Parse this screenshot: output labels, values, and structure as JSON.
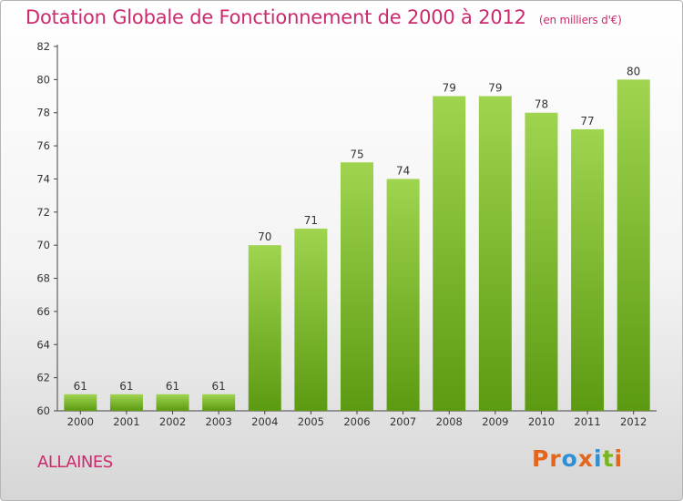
{
  "title": "Dotation Globale de Fonctionnement de 2000 à 2012",
  "unit": "(en milliers d'€)",
  "commune": "ALLAINES",
  "logo": {
    "letters": [
      "P",
      "r",
      "o",
      "x",
      "i",
      "t",
      "i"
    ],
    "colors": [
      "#e2661c",
      "#e2661c",
      "#2f8fd5",
      "#e2661c",
      "#2f8fd5",
      "#79b51c",
      "#e2661c"
    ]
  },
  "colors": {
    "title": "#cc2a6e",
    "bar_top": "#9fd44f",
    "bar_bottom": "#5c9a12"
  },
  "chart_data": {
    "type": "bar",
    "categories": [
      "2000",
      "2001",
      "2002",
      "2003",
      "2004",
      "2005",
      "2006",
      "2007",
      "2008",
      "2009",
      "2010",
      "2011",
      "2012"
    ],
    "values": [
      61,
      61,
      61,
      61,
      70,
      71,
      75,
      74,
      79,
      79,
      78,
      77,
      80
    ],
    "ylim": [
      60,
      82
    ],
    "yticks": [
      60,
      62,
      64,
      66,
      68,
      70,
      72,
      74,
      76,
      78,
      80,
      82
    ],
    "grid": false,
    "legend": "none"
  }
}
